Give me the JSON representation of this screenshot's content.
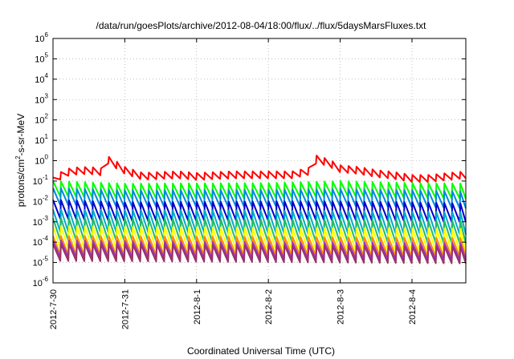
{
  "chart_data": {
    "type": "line",
    "title": "/data/run/goesPlots/archive/2012-08-04/18:00/flux/../flux/5daysMarsFluxes.txt",
    "xlabel": "Coordinated Universal Time (UTC)",
    "ylabel_parts": [
      "protons/cm",
      "2",
      "-s-sr-MeV"
    ],
    "y_scale": "log",
    "ylim": [
      1e-06,
      1000000.0
    ],
    "y_ticks": [
      {
        "base": "10",
        "exp": "-6",
        "value": 1e-06
      },
      {
        "base": "10",
        "exp": "-5",
        "value": 1e-05
      },
      {
        "base": "10",
        "exp": "-4",
        "value": 0.0001
      },
      {
        "base": "10",
        "exp": "-3",
        "value": 0.001
      },
      {
        "base": "10",
        "exp": "-2",
        "value": 0.01
      },
      {
        "base": "10",
        "exp": "-1",
        "value": 0.1
      },
      {
        "base": "10",
        "exp": "0",
        "value": 1
      },
      {
        "base": "10",
        "exp": "1",
        "value": 10
      },
      {
        "base": "10",
        "exp": "2",
        "value": 100
      },
      {
        "base": "10",
        "exp": "3",
        "value": 1000
      },
      {
        "base": "10",
        "exp": "4",
        "value": 10000
      },
      {
        "base": "10",
        "exp": "5",
        "value": 100000
      },
      {
        "base": "10",
        "exp": "6",
        "value": 1000000
      }
    ],
    "xlim": [
      "2012-07-30",
      "2012-08-04T18:00"
    ],
    "x_ticks": [
      "2012-7-30",
      "2012-7-31",
      "2012-8-1",
      "2012-8-2",
      "2012-8-3",
      "2012-8-4"
    ],
    "grid": true,
    "sawtooth_period_hours": 2.67,
    "series": [
      {
        "color": "#ff0000",
        "points": [
          [
            "2012-07-30T00:00",
            0.15
          ],
          [
            "2012-07-30T03:00",
            0.3
          ],
          [
            "2012-07-30T06:00",
            0.45
          ],
          [
            "2012-07-30T12:00",
            0.5
          ],
          [
            "2012-07-30T17:00",
            0.4
          ],
          [
            "2012-07-30T17:30",
            2.0
          ],
          [
            "2012-07-31T00:00",
            0.5
          ],
          [
            "2012-07-31T06:00",
            0.25
          ],
          [
            "2012-07-31T12:00",
            0.28
          ],
          [
            "2012-07-31T18:00",
            0.3
          ],
          [
            "2012-08-01T00:00",
            0.25
          ],
          [
            "2012-08-01T12:00",
            0.3
          ],
          [
            "2012-08-02T00:00",
            0.3
          ],
          [
            "2012-08-02T08:00",
            0.3
          ],
          [
            "2012-08-02T15:00",
            0.5
          ],
          [
            "2012-08-02T16:00",
            1.8
          ],
          [
            "2012-08-02T20:00",
            1.2
          ],
          [
            "2012-08-03T00:00",
            0.6
          ],
          [
            "2012-08-03T06:00",
            0.5
          ],
          [
            "2012-08-03T12:00",
            0.35
          ],
          [
            "2012-08-03T18:00",
            0.28
          ],
          [
            "2012-08-04T00:00",
            0.2
          ],
          [
            "2012-08-04T06:00",
            0.2
          ],
          [
            "2012-08-04T12:00",
            0.25
          ],
          [
            "2012-08-04T18:00",
            0.3
          ]
        ],
        "dip": 0.45
      },
      {
        "color": "#00ff00",
        "points": [
          [
            "2012-07-30T00:00",
            0.1
          ],
          [
            "2012-07-31T00:00",
            0.075
          ],
          [
            "2012-08-02T00:00",
            0.08
          ],
          [
            "2012-08-03T00:00",
            0.1
          ],
          [
            "2012-08-04T00:00",
            0.08
          ],
          [
            "2012-08-04T18:00",
            0.075
          ]
        ],
        "dip": 0.18
      },
      {
        "color": "#0088dd",
        "points": [
          [
            "2012-07-30T00:00",
            0.045
          ],
          [
            "2012-07-31T00:00",
            0.035
          ],
          [
            "2012-08-02T00:00",
            0.037
          ],
          [
            "2012-08-03T00:00",
            0.04
          ],
          [
            "2012-08-04T00:00",
            0.035
          ],
          [
            "2012-08-04T18:00",
            0.03
          ]
        ],
        "dip": 0.15
      },
      {
        "color": "#0000cc",
        "points": [
          [
            "2012-07-30T00:00",
            0.012
          ],
          [
            "2012-07-31T00:00",
            0.009
          ],
          [
            "2012-08-02T00:00",
            0.01
          ],
          [
            "2012-08-03T00:00",
            0.01
          ],
          [
            "2012-08-04T00:00",
            0.009
          ],
          [
            "2012-08-04T18:00",
            0.008
          ]
        ],
        "dip": 0.12
      },
      {
        "color": "#00aacc",
        "points": [
          [
            "2012-07-30T00:00",
            0.004
          ],
          [
            "2012-08-02T00:00",
            0.0035
          ],
          [
            "2012-08-04T18:00",
            0.003
          ]
        ],
        "dip": 0.08
      },
      {
        "color": "#22bb66",
        "points": [
          [
            "2012-07-30T00:00",
            0.0015
          ],
          [
            "2012-08-02T00:00",
            0.0013
          ],
          [
            "2012-08-04T18:00",
            0.0011
          ]
        ],
        "dip": 0.08
      },
      {
        "color": "#ffff00",
        "points": [
          [
            "2012-07-30T00:00",
            0.0006
          ],
          [
            "2012-08-02T00:00",
            0.0005
          ],
          [
            "2012-08-04T18:00",
            0.00045
          ]
        ],
        "dip": 0.08
      },
      {
        "color": "#ff8c00",
        "points": [
          [
            "2012-07-30T00:00",
            0.0002
          ],
          [
            "2012-08-02T00:00",
            0.00018
          ],
          [
            "2012-08-04T18:00",
            0.00016
          ]
        ],
        "dip": 0.12
      },
      {
        "color": "#9933cc",
        "points": [
          [
            "2012-07-30T00:00",
            0.00012
          ],
          [
            "2012-08-02T00:00",
            0.0001
          ],
          [
            "2012-08-04T18:00",
            9e-05
          ]
        ],
        "dip": 0.15
      },
      {
        "color": "#993366",
        "points": [
          [
            "2012-07-30T00:00",
            8e-05
          ],
          [
            "2012-08-02T00:00",
            7e-05
          ],
          [
            "2012-08-04T18:00",
            6e-05
          ]
        ],
        "dip": 0.15
      }
    ]
  }
}
